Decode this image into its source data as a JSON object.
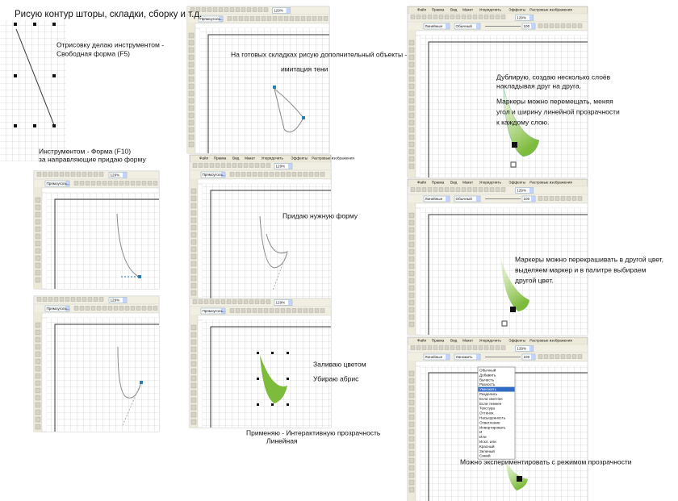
{
  "captions": {
    "title": "Рисую контур шторы, складки, сборку и т.д.",
    "freeform_1": "Отрисовку делаю инструментом -",
    "freeform_2": "Свободная форма (F5)",
    "shape_1": "Инструментом - Форма (F10)",
    "shape_2": "за направляющие придаю форму",
    "shadow_1": "На готовых складках рисую дополнительный объекты -",
    "shadow_2": "имитация тени",
    "form": "Придаю нужную форму",
    "fill": "Заливаю цветом",
    "outline": "Убираю абрис",
    "transp_1": "Применяю - Интерактивную прозрачность",
    "transp_2": "Линейная",
    "layers_1": "Дублирую, создаю несколько слоёв",
    "layers_2": "накладывая друг на друга.",
    "markers_1": "Маркеры можно перемещать, меняя",
    "markers_2": "угол и ширину линейной прозрачности",
    "markers_3": "к каждому слою.",
    "recolor_1": "Маркеры можно перекрашивать в другой цвет,",
    "recolor_2": "выделяем маркер и в палитре выбираем",
    "recolor_3": "другой цвет.",
    "modes": "Можно экспериментировать с режимом прозрачности"
  },
  "menu": [
    "Файл",
    "Правка",
    "Вид",
    "Макет",
    "Упорядочить",
    "Эффекты",
    "Растровые изображения"
  ],
  "toolbar": {
    "zoom": "129%",
    "shape": "Прямоуголь...",
    "transparency": "Линейные",
    "mode": "Обычный",
    "mode_multiply": "Умножить",
    "opacity": "100"
  },
  "blend_modes": [
    "Обычный",
    "Добавить",
    "Вычесть",
    "Разность",
    "Умножить",
    "Разделить",
    "Если светлее",
    "Если темнее",
    "Текстура",
    "Оттенок",
    "Насыщенность",
    "Осветление",
    "Инвертировать",
    "И",
    "Или",
    "Искл. или",
    "Красный",
    "Зеленый",
    "Синий"
  ]
}
